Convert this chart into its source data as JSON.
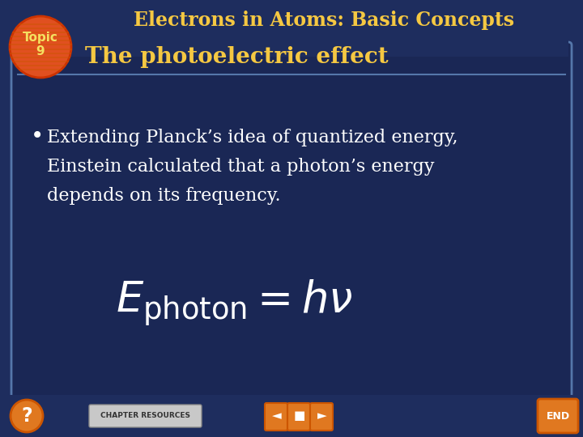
{
  "title": "Electrons in Atoms: Basic Concepts",
  "subtitle": "The photoelectric effect",
  "topic_label": "Topic\n9",
  "bullet_text": "Extending Planck’s idea of quantized energy,\nEinstein calculated that a photon’s energy\ndepends on its frequency.",
  "bg_outer": "#1e2d5e",
  "bg_inner": "#1a2755",
  "title_color": "#f5c842",
  "subtitle_color": "#f5c842",
  "bullet_color": "#ffffff",
  "formula_color": "#ffffff",
  "topic_bg": "#e05020",
  "topic_text_color": "#f5e060",
  "border_color": "#5577aa",
  "bottom_bar_color": "#1e2d5e",
  "nav_button_color": "#e07820",
  "chap_res_bg": "#c8c8c8",
  "chap_res_text": "#333333"
}
